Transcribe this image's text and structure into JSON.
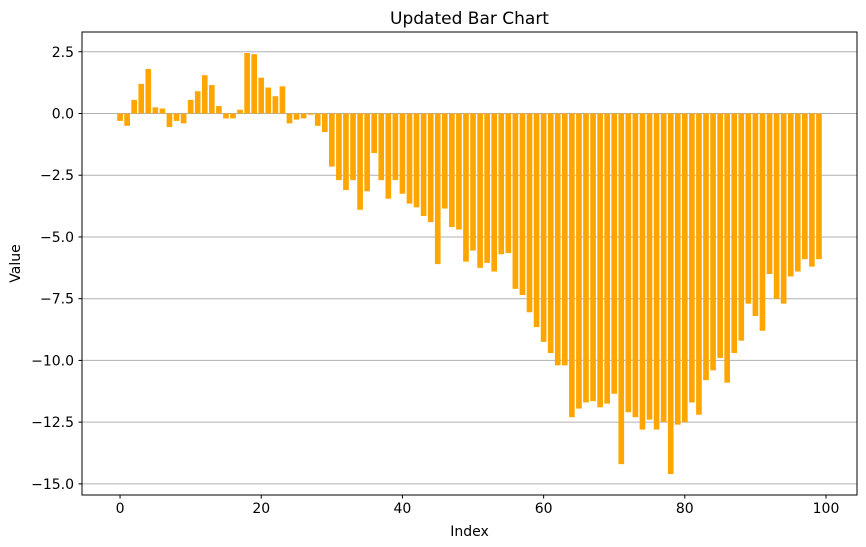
{
  "title": "Updated Bar Chart",
  "chart_data": {
    "type": "bar",
    "title": "Updated Bar Chart",
    "xlabel": "Index",
    "ylabel": "Value",
    "bar_color": "#FFA500",
    "grid": "horizontal",
    "grid_color": "#b0b0b0",
    "legend": null,
    "xlim": [
      -5.39,
      104.39
    ],
    "ylim": [
      -15.45,
      3.3
    ],
    "xticks": [
      0,
      20,
      40,
      60,
      80,
      100
    ],
    "xtick_labels": [
      "0",
      "20",
      "40",
      "60",
      "80",
      "100"
    ],
    "yticks": [
      2.5,
      0.0,
      -2.5,
      -5.0,
      -7.5,
      -10.0,
      -12.5,
      -15.0
    ],
    "ytick_labels": [
      "2.5",
      "0.0",
      "−2.5",
      "−5.0",
      "−7.5",
      "−10.0",
      "−12.5",
      "−15.0"
    ],
    "x": [
      0,
      1,
      2,
      3,
      4,
      5,
      6,
      7,
      8,
      9,
      10,
      11,
      12,
      13,
      14,
      15,
      16,
      17,
      18,
      19,
      20,
      21,
      22,
      23,
      24,
      25,
      26,
      27,
      28,
      29,
      30,
      31,
      32,
      33,
      34,
      35,
      36,
      37,
      38,
      39,
      40,
      41,
      42,
      43,
      44,
      45,
      46,
      47,
      48,
      49,
      50,
      51,
      52,
      53,
      54,
      55,
      56,
      57,
      58,
      59,
      60,
      61,
      62,
      63,
      64,
      65,
      66,
      67,
      68,
      69,
      70,
      71,
      72,
      73,
      74,
      75,
      76,
      77,
      78,
      79,
      80,
      81,
      82,
      83,
      84,
      85,
      86,
      87,
      88,
      89,
      90,
      91,
      92,
      93,
      94,
      95,
      96,
      97,
      98,
      99
    ],
    "values": [
      -0.3,
      -0.5,
      0.55,
      1.2,
      1.8,
      0.25,
      0.2,
      -0.55,
      -0.3,
      -0.4,
      0.55,
      0.9,
      1.55,
      1.15,
      0.3,
      -0.2,
      -0.2,
      0.15,
      2.45,
      2.4,
      1.45,
      1.05,
      0.7,
      1.1,
      -0.4,
      -0.25,
      -0.2,
      -0.05,
      -0.5,
      -0.75,
      -2.15,
      -2.7,
      -3.1,
      -2.7,
      -3.9,
      -3.15,
      -1.6,
      -2.7,
      -3.45,
      -2.7,
      -3.25,
      -3.65,
      -3.8,
      -4.15,
      -4.4,
      -6.1,
      -3.85,
      -4.6,
      -4.7,
      -6.0,
      -5.55,
      -6.25,
      -6.05,
      -6.4,
      -5.7,
      -5.65,
      -7.1,
      -7.35,
      -8.05,
      -8.65,
      -9.25,
      -9.7,
      -10.2,
      -10.2,
      -12.3,
      -11.95,
      -11.7,
      -11.65,
      -11.9,
      -11.75,
      -11.35,
      -14.2,
      -12.1,
      -12.3,
      -12.8,
      -12.4,
      -12.8,
      -12.5,
      -14.6,
      -12.6,
      -12.5,
      -11.7,
      -12.2,
      -10.8,
      -10.4,
      -9.9,
      -10.9,
      -9.7,
      -9.2,
      -7.7,
      -8.2,
      -8.8,
      -6.5,
      -7.5,
      -7.7,
      -6.6,
      -6.4,
      -5.9,
      -6.2,
      -5.9
    ]
  }
}
